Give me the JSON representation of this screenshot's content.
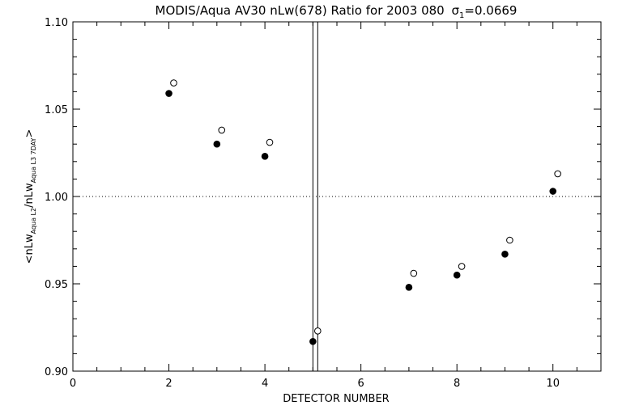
{
  "chart_data": {
    "type": "scatter",
    "title": "MODIS/Aqua AV30 nLw(678) Ratio for 2003 080",
    "title_sigma_label": "σ",
    "title_sigma_sub": "1",
    "title_sigma_value": "=0.0669",
    "xlabel": "DETECTOR NUMBER",
    "ylabel_parts": {
      "open": "<nLw",
      "sub1": "Aqua L2",
      "mid": "/nLw",
      "sub2": "Aqua L3 7DAY",
      "close": ">"
    },
    "xlim": [
      0,
      11
    ],
    "ylim": [
      0.9,
      1.1
    ],
    "xticks": [
      0,
      2,
      4,
      6,
      8,
      10
    ],
    "xtick_labels": [
      "0",
      "2",
      "4",
      "6",
      "8",
      "10"
    ],
    "yticks": [
      0.9,
      0.95,
      1.0,
      1.05,
      1.1
    ],
    "ytick_labels": [
      "0.90",
      "0.95",
      "1.00",
      "1.05",
      "1.10"
    ],
    "reference_line_y": 1.0,
    "vertical_lines_x": [
      5.0,
      5.1
    ],
    "series": [
      {
        "marker": "filled-circle",
        "points": [
          {
            "x": 2.0,
            "y": 1.059
          },
          {
            "x": 3.0,
            "y": 1.03
          },
          {
            "x": 4.0,
            "y": 1.023
          },
          {
            "x": 5.0,
            "y": 0.917
          },
          {
            "x": 7.0,
            "y": 0.948
          },
          {
            "x": 8.0,
            "y": 0.955
          },
          {
            "x": 9.0,
            "y": 0.967
          },
          {
            "x": 10.0,
            "y": 1.003
          }
        ]
      },
      {
        "marker": "open-circle",
        "points": [
          {
            "x": 2.1,
            "y": 1.065
          },
          {
            "x": 3.1,
            "y": 1.038
          },
          {
            "x": 4.1,
            "y": 1.031
          },
          {
            "x": 5.1,
            "y": 0.923
          },
          {
            "x": 7.1,
            "y": 0.956
          },
          {
            "x": 8.1,
            "y": 0.96
          },
          {
            "x": 9.1,
            "y": 0.975
          },
          {
            "x": 10.1,
            "y": 1.013
          }
        ]
      }
    ],
    "grid": false,
    "colors": {
      "foreground": "#000000",
      "background": "#ffffff"
    }
  }
}
